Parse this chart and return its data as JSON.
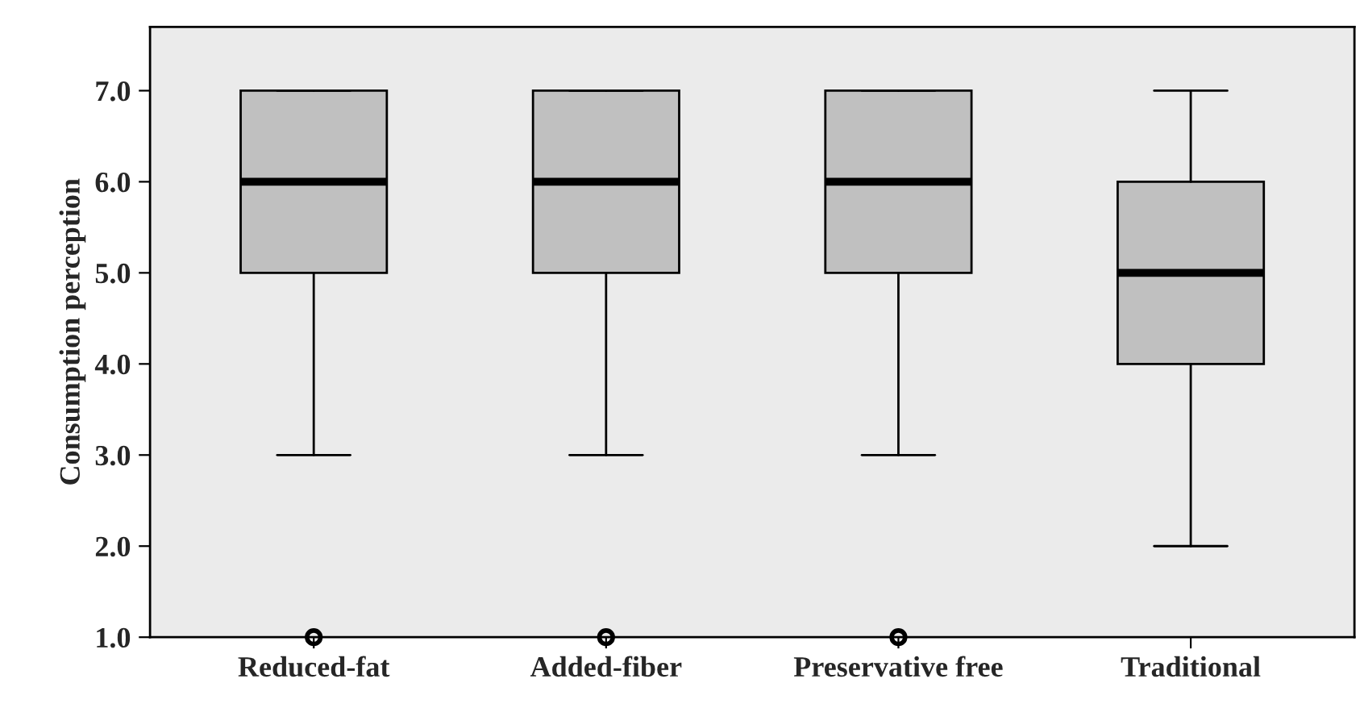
{
  "chart_data": {
    "type": "box",
    "ylabel": "Consumption perception",
    "categories": [
      "Reduced-fat",
      "Added-fiber",
      "Preservative free",
      "Traditional"
    ],
    "boxes": [
      {
        "low": 3,
        "q1": 5,
        "median": 6,
        "q3": 7,
        "high": 7,
        "outliers": [
          1
        ]
      },
      {
        "low": 3,
        "q1": 5,
        "median": 6,
        "q3": 7,
        "high": 7,
        "outliers": [
          1
        ]
      },
      {
        "low": 3,
        "q1": 5,
        "median": 6,
        "q3": 7,
        "high": 7,
        "outliers": [
          1
        ]
      },
      {
        "low": 2,
        "q1": 4,
        "median": 5,
        "q3": 6,
        "high": 7
      }
    ],
    "color": "#c0c0c0",
    "ylim": [
      1,
      7.7
    ],
    "yticks": [
      {
        "value": 1,
        "label": "1.0"
      },
      {
        "value": 2,
        "label": "2.0"
      },
      {
        "value": 3,
        "label": "3.0"
      },
      {
        "value": 4,
        "label": "4.0"
      },
      {
        "value": 5,
        "label": "5.0"
      },
      {
        "value": 6,
        "label": "6.0"
      },
      {
        "value": 7,
        "label": "7.0"
      }
    ],
    "grid": false
  }
}
